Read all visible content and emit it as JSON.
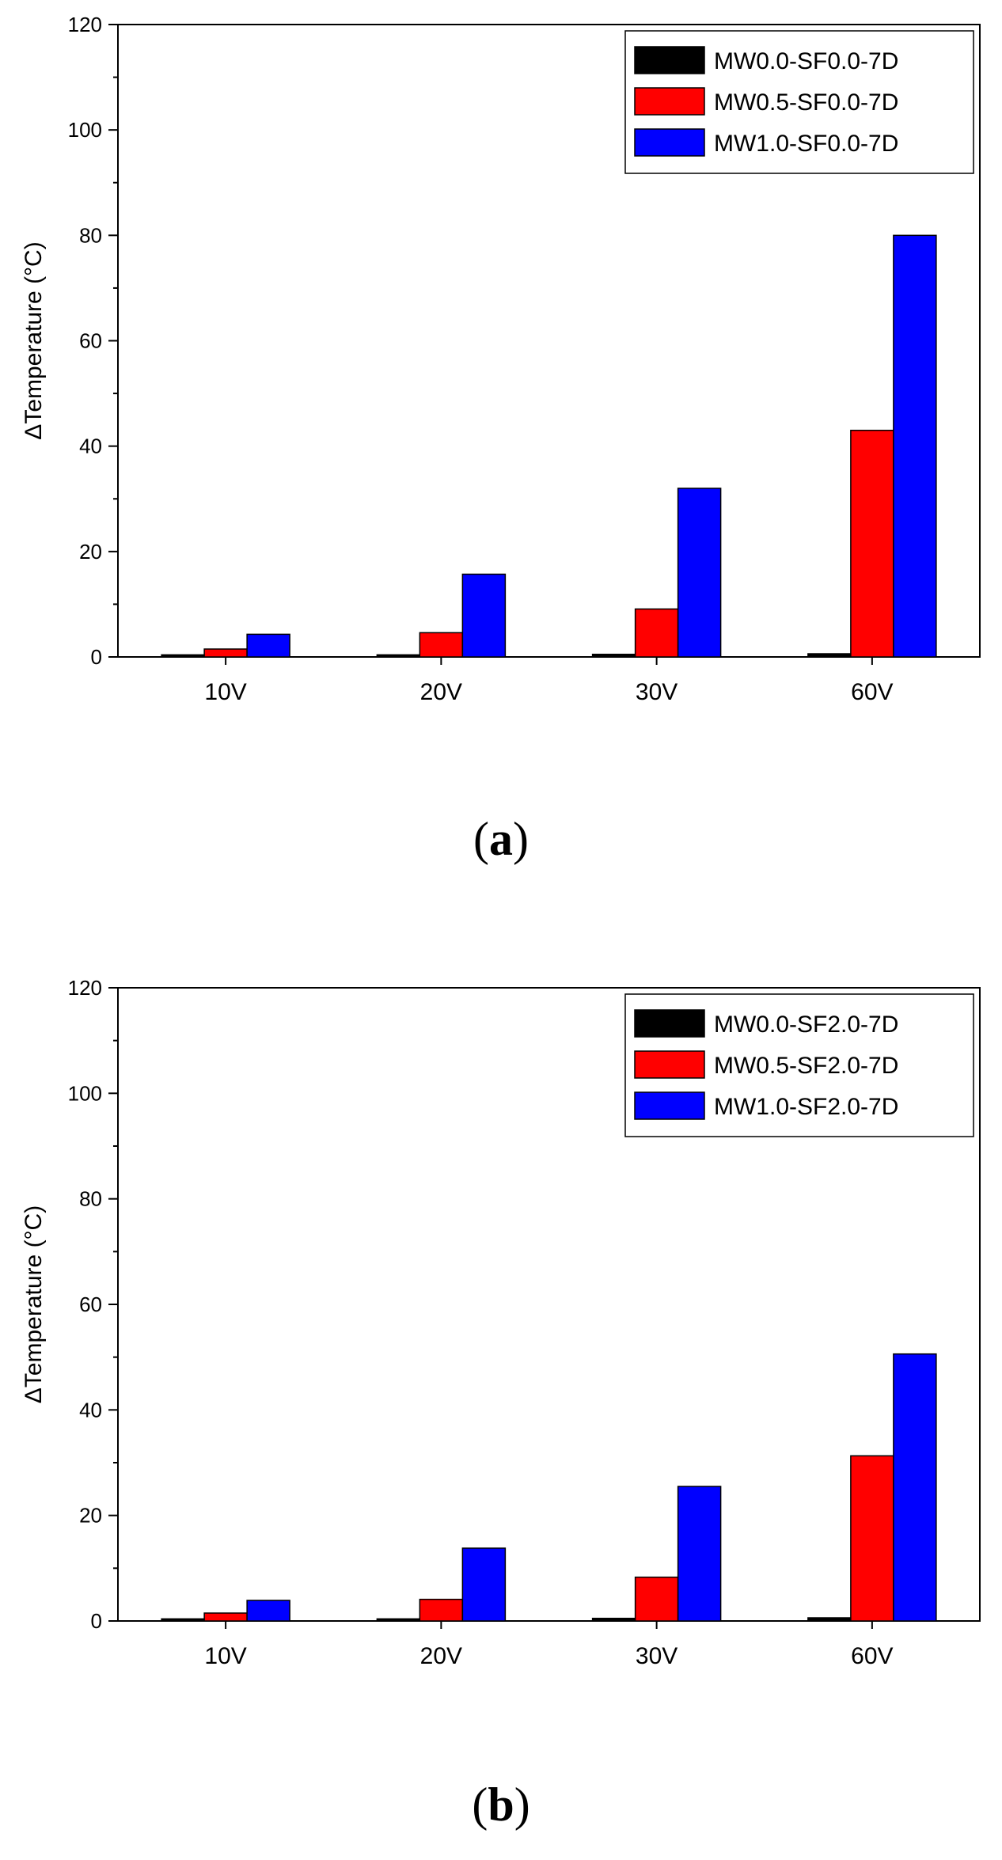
{
  "chart_data": [
    {
      "type": "bar",
      "title": "",
      "xlabel": "",
      "ylabel": "ΔTemperature (°C)",
      "ylim": [
        0,
        120
      ],
      "yticks": [
        "0",
        "20",
        "40",
        "60",
        "80",
        "100",
        "120"
      ],
      "categories": [
        "10V",
        "20V",
        "30V",
        "60V"
      ],
      "series": [
        {
          "name": "MW0.0-SF0.0-7D",
          "color": "#000000",
          "values": [
            0.4,
            0.4,
            0.5,
            0.6
          ]
        },
        {
          "name": "MW0.5-SF0.0-7D",
          "color": "#ff0000",
          "values": [
            1.5,
            4.6,
            9.1,
            43.0
          ]
        },
        {
          "name": "MW1.0-SF0.0-7D",
          "color": "#0000ff",
          "values": [
            4.3,
            15.7,
            32.0,
            80.0
          ]
        }
      ],
      "legend_position": "top-right",
      "panel_label": "a"
    },
    {
      "type": "bar",
      "title": "",
      "xlabel": "",
      "ylabel": "ΔTemperature (°C)",
      "ylim": [
        0,
        120
      ],
      "yticks": [
        "0",
        "20",
        "40",
        "60",
        "80",
        "100",
        "120"
      ],
      "categories": [
        "10V",
        "20V",
        "30V",
        "60V"
      ],
      "series": [
        {
          "name": "MW0.0-SF2.0-7D",
          "color": "#000000",
          "values": [
            0.4,
            0.4,
            0.5,
            0.6
          ]
        },
        {
          "name": "MW0.5-SF2.0-7D",
          "color": "#ff0000",
          "values": [
            1.5,
            4.1,
            8.3,
            31.3
          ]
        },
        {
          "name": "MW1.0-SF2.0-7D",
          "color": "#0000ff",
          "values": [
            3.9,
            13.8,
            25.5,
            50.6
          ]
        }
      ],
      "legend_position": "top-right",
      "panel_label": "b"
    }
  ]
}
